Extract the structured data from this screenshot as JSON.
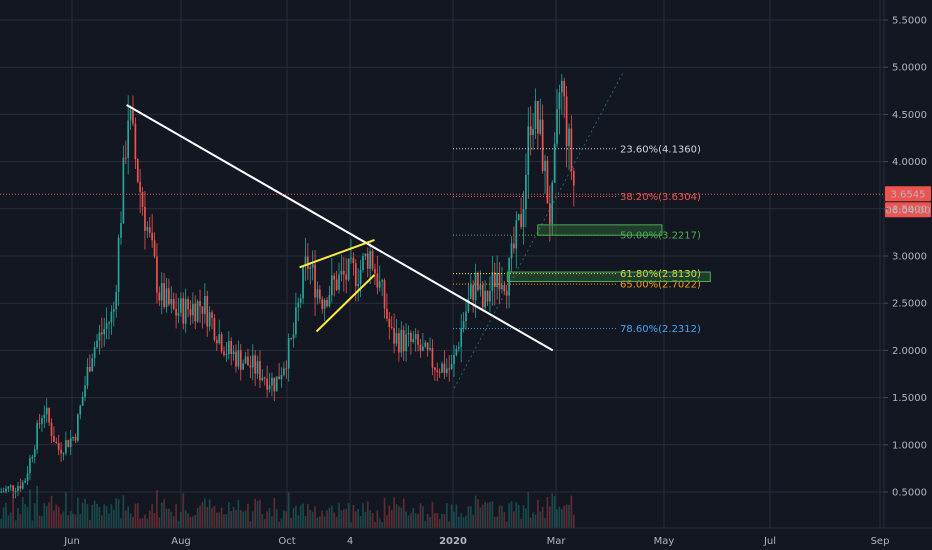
{
  "chart_data": {
    "type": "candlestick",
    "title": "",
    "y_axis": {
      "ticks": [
        "0.5000",
        "1.0000",
        "1.5000",
        "2.0000",
        "2.5000",
        "3.0000",
        "3.5000",
        "4.0000",
        "4.5000",
        "5.0000",
        "5.5000"
      ],
      "ylim": [
        0.05,
        5.85
      ]
    },
    "x_axis": {
      "labels": [
        "Jun",
        "Aug",
        "Oct",
        "4",
        "2020",
        "Mar",
        "May",
        "Jul",
        "Sep"
      ]
    },
    "current_price": {
      "label": "3.6545",
      "value": 3.6545,
      "color": "#ef5350"
    },
    "countdown": {
      "label": "06:04:00",
      "color": "#ef5350"
    },
    "fib_levels": [
      {
        "label": "23.60%(4.1360)",
        "value": 4.136,
        "color": "#d1d4dc"
      },
      {
        "label": "38.20%(3.6304)",
        "value": 3.6304,
        "color": "#ef5350"
      },
      {
        "label": "50.00%(3.2217)",
        "value": 3.2217,
        "color": "#4caf50"
      },
      {
        "label": "61.80%(2.8130)",
        "value": 2.813,
        "color": "#ffeb3b"
      },
      {
        "label": "65.00%(2.7022)",
        "value": 2.7022,
        "color": "#ff9800"
      },
      {
        "label": "78.60%(2.2312)",
        "value": 2.2312,
        "color": "#42a5f5"
      }
    ],
    "price_path_keyframes": [
      {
        "t": 0.0,
        "p": 0.5
      },
      {
        "t": 0.05,
        "p": 0.6
      },
      {
        "t": 0.09,
        "p": 1.4
      },
      {
        "t": 0.12,
        "p": 0.95
      },
      {
        "t": 0.155,
        "p": 1.1
      },
      {
        "t": 0.19,
        "p": 2.0
      },
      {
        "t": 0.235,
        "p": 2.4
      },
      {
        "t": 0.255,
        "p": 3.8
      },
      {
        "t": 0.265,
        "p": 4.55
      },
      {
        "t": 0.29,
        "p": 3.7
      },
      {
        "t": 0.33,
        "p": 2.6
      },
      {
        "t": 0.36,
        "p": 2.4
      },
      {
        "t": 0.42,
        "p": 2.5
      },
      {
        "t": 0.47,
        "p": 2.0
      },
      {
        "t": 0.53,
        "p": 1.8
      },
      {
        "t": 0.57,
        "p": 1.65
      },
      {
        "t": 0.605,
        "p": 2.1
      },
      {
        "t": 0.635,
        "p": 2.95
      },
      {
        "t": 0.665,
        "p": 2.55
      },
      {
        "t": 0.7,
        "p": 2.75
      },
      {
        "t": 0.745,
        "p": 2.85
      },
      {
        "t": 0.765,
        "p": 3.05
      },
      {
        "t": 0.79,
        "p": 2.6
      },
      {
        "t": 0.81,
        "p": 2.15
      },
      {
        "t": 0.86,
        "p": 2.05
      },
      {
        "t": 0.9,
        "p": 1.85
      },
      {
        "t": 0.935,
        "p": 1.8
      },
      {
        "t": 0.96,
        "p": 2.35
      },
      {
        "t": 0.985,
        "p": 2.75
      },
      {
        "t": 1.0,
        "p": 2.45
      },
      {
        "t": 1.03,
        "p": 2.85
      },
      {
        "t": 1.05,
        "p": 2.75
      },
      {
        "t": 1.08,
        "p": 3.45
      },
      {
        "t": 1.1,
        "p": 4.6
      },
      {
        "t": 1.12,
        "p": 4.2
      },
      {
        "t": 1.14,
        "p": 3.35
      },
      {
        "t": 1.16,
        "p": 4.9
      },
      {
        "t": 1.175,
        "p": 4.25
      },
      {
        "t": 1.19,
        "p": 3.65
      }
    ],
    "drawings": [
      {
        "name": "descending-trendline",
        "color": "#ffffff",
        "from": {
          "t": 0.262,
          "p": 4.6
        },
        "to": {
          "t": 1.144,
          "p": 2.0
        }
      },
      {
        "name": "wedge-upper-line",
        "color": "#ffeb3b",
        "from": {
          "t": 0.62,
          "p": 2.88
        },
        "to": {
          "t": 0.775,
          "p": 3.17
        }
      },
      {
        "name": "wedge-lower-line",
        "color": "#ffeb3b",
        "from": {
          "t": 0.655,
          "p": 2.2
        },
        "to": {
          "t": 0.775,
          "p": 2.8
        }
      },
      {
        "name": "projection-dotted-line",
        "color": "#26a69a",
        "from": {
          "t": 0.94,
          "p": 1.6
        },
        "to": {
          "t": 1.29,
          "p": 4.95
        }
      }
    ],
    "zones": [
      {
        "name": "zone-50",
        "color": "#4caf50",
        "p_low": 3.22,
        "p_high": 3.33,
        "t_start": 1.113,
        "t_end": 1.37
      },
      {
        "name": "zone-61-65",
        "color": "#4caf50",
        "p_low": 2.73,
        "p_high": 2.83,
        "t_start": 1.05,
        "t_end": 1.47
      }
    ],
    "colors": {
      "background": "#131722",
      "grid": "#2a2e39",
      "up": "#26a69a",
      "down": "#ef5350",
      "axis_text": "#b2b5be"
    },
    "grid": true
  }
}
